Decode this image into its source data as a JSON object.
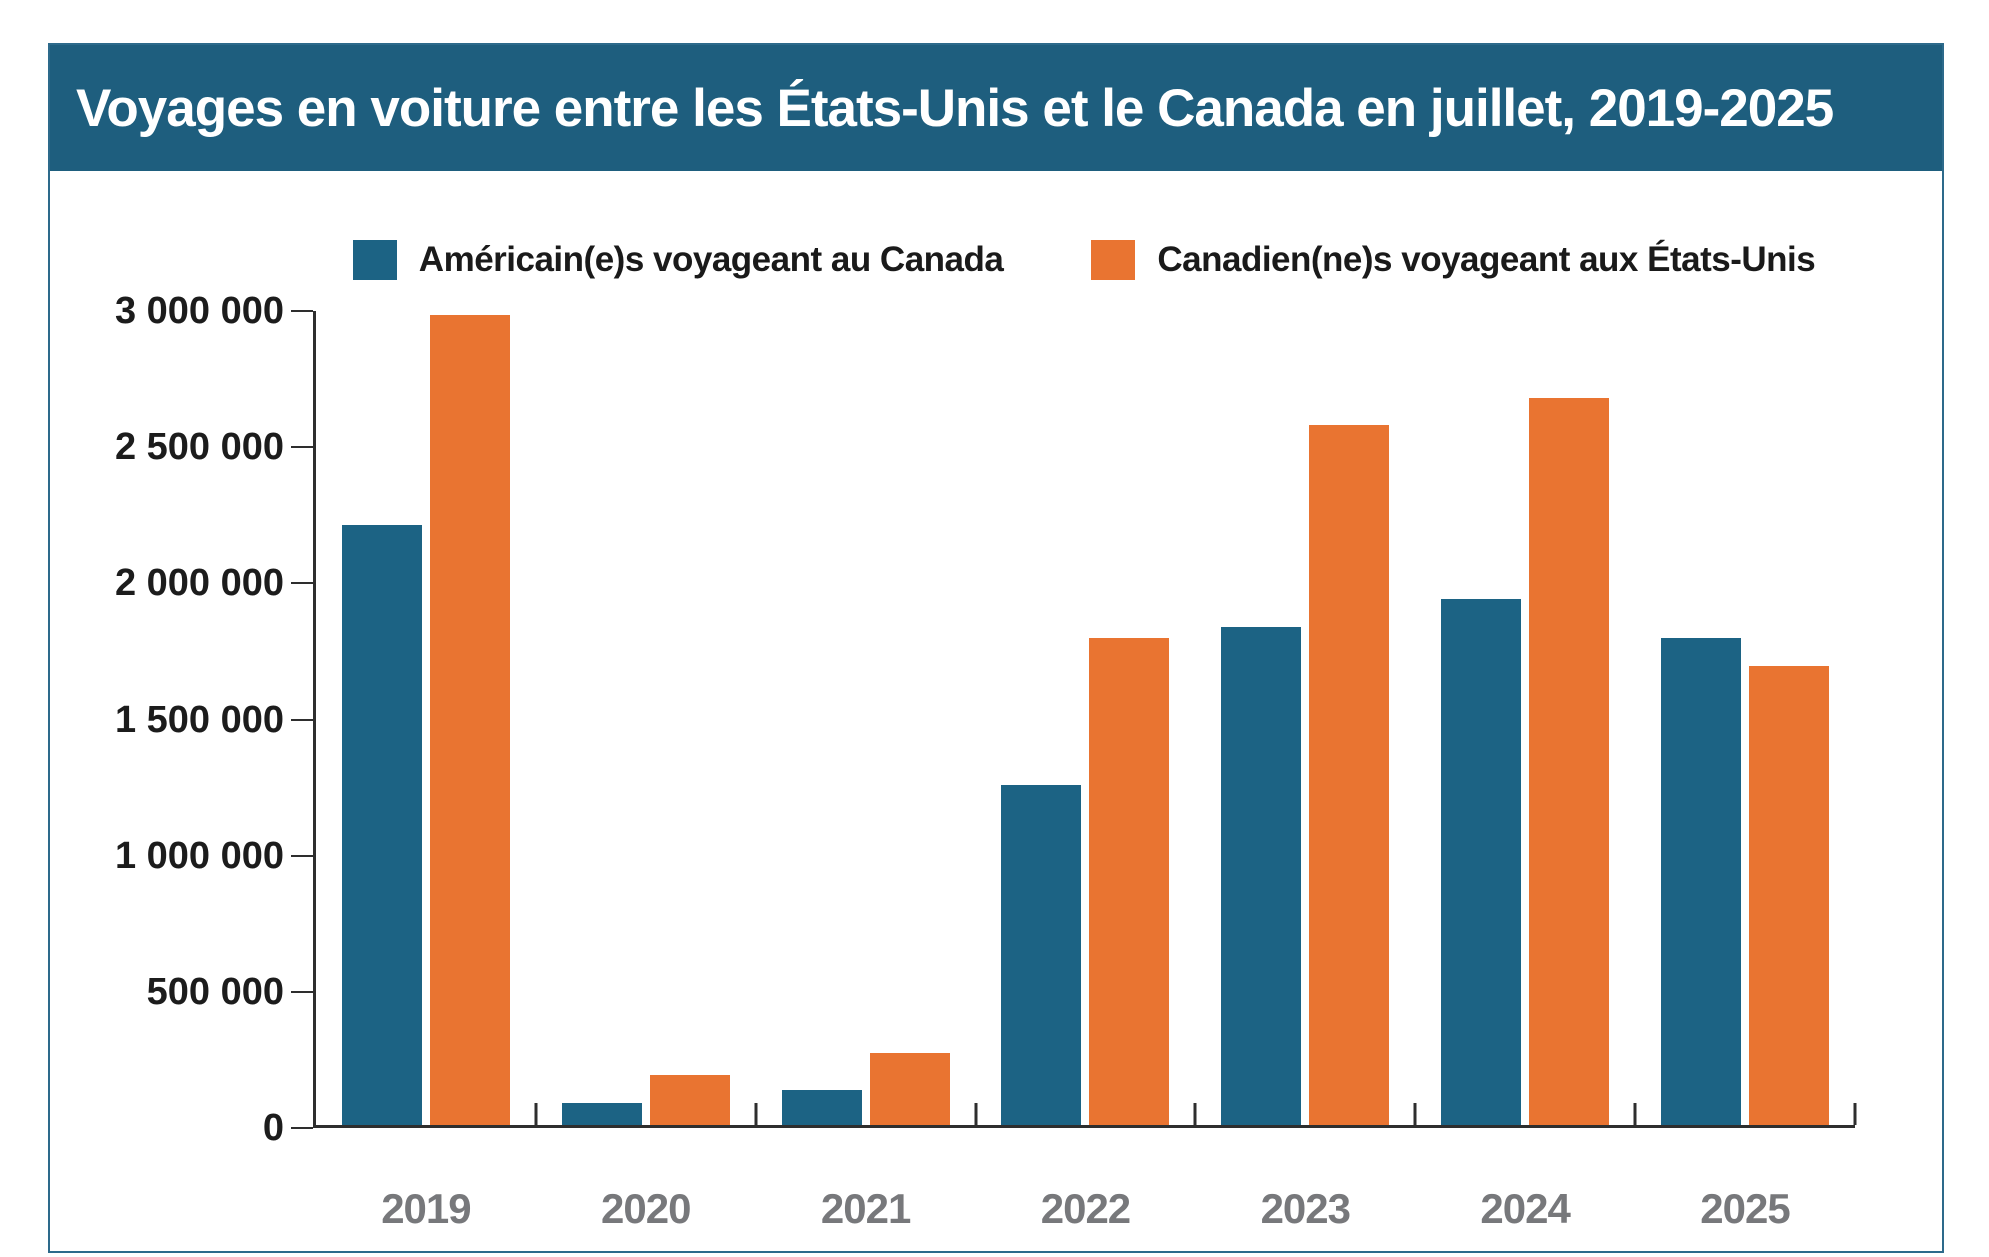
{
  "title": "Voyages en voiture entre les États-Unis et le Canada en juillet, 2019-2025",
  "colors": {
    "banner_background": "#1e5e7e",
    "us_series": "#1c6384",
    "ca_series": "#e97431",
    "axis": "#2e2e2e",
    "ytick_label": "#1c1c1c",
    "year_label": "#77787b",
    "panel_border": "#2d6a8b",
    "title_text": "#ffffff"
  },
  "chart_data": {
    "type": "bar",
    "title": "Voyages en voiture entre les États-Unis et le Canada en juillet, 2019-2025",
    "categories": [
      "2019",
      "2020",
      "2021",
      "2022",
      "2023",
      "2024",
      "2025"
    ],
    "series": [
      {
        "name": "Américain(e)s voyageant au Canada",
        "color": "#1c6384",
        "values": [
          2205000,
          80000,
          130000,
          1250000,
          1830000,
          1930000,
          1790000
        ]
      },
      {
        "name": "Canadien(ne)s voyageant aux États-Unis",
        "color": "#e97431",
        "values": [
          2975000,
          185000,
          265000,
          1790000,
          2570000,
          2670000,
          1685000
        ]
      }
    ],
    "xlabel": "",
    "ylabel": "",
    "ylim": [
      0,
      3000000
    ],
    "yticks": [
      {
        "value": 0,
        "label": "0"
      },
      {
        "value": 500000,
        "label": "500 000"
      },
      {
        "value": 1000000,
        "label": "1 000 000"
      },
      {
        "value": 1500000,
        "label": "1 500 000"
      },
      {
        "value": 2000000,
        "label": "2 000 000"
      },
      {
        "value": 2500000,
        "label": "2 500 000"
      },
      {
        "value": 3000000,
        "label": "3 000 000"
      }
    ],
    "legend_position": "top",
    "grid": false
  }
}
